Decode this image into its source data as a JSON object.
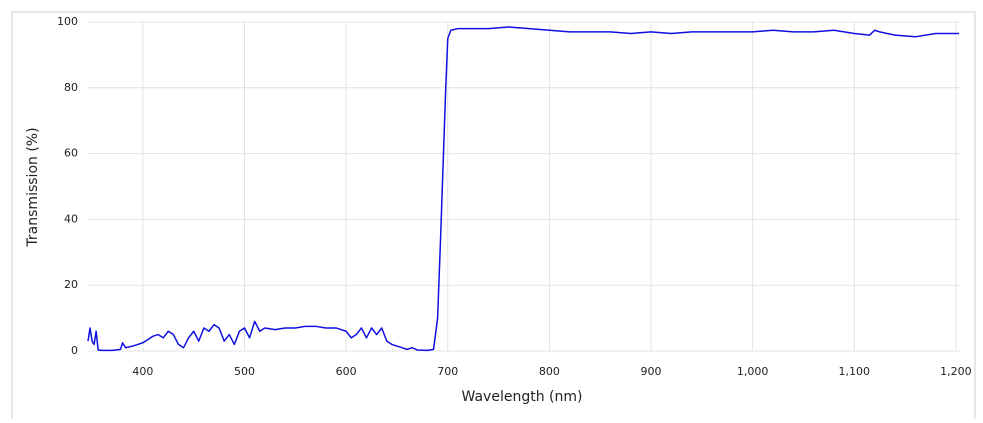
{
  "chart_data": {
    "type": "line",
    "x_label": "Wavelength (nm)",
    "y_label": "Transmission (%)",
    "xlim": [
      346,
      1204
    ],
    "ylim": [
      0,
      100
    ],
    "xticks": [
      400,
      500,
      600,
      700,
      800,
      900,
      {
        "value": 1000,
        "label": "1,000"
      },
      {
        "value": 1100,
        "label": "1,100"
      },
      {
        "value": 1200,
        "label": "1,200"
      }
    ],
    "yticks": [
      0,
      20,
      40,
      60,
      80,
      100
    ],
    "grid": true,
    "x": [
      346,
      348,
      350,
      352,
      354,
      356,
      360,
      370,
      378,
      380,
      383,
      390,
      395,
      400,
      405,
      410,
      415,
      420,
      425,
      430,
      435,
      440,
      445,
      450,
      455,
      460,
      465,
      470,
      475,
      480,
      485,
      490,
      495,
      500,
      505,
      510,
      515,
      520,
      530,
      540,
      550,
      560,
      570,
      580,
      590,
      600,
      605,
      610,
      615,
      620,
      625,
      630,
      635,
      640,
      645,
      650,
      655,
      660,
      665,
      670,
      680,
      686,
      690,
      693,
      696,
      698,
      700,
      703,
      710,
      720,
      740,
      760,
      780,
      800,
      820,
      840,
      860,
      880,
      900,
      920,
      940,
      960,
      980,
      1000,
      1020,
      1040,
      1060,
      1080,
      1100,
      1115,
      1120,
      1125,
      1140,
      1160,
      1180,
      1200,
      1203
    ],
    "series": [
      {
        "name": "Transmission",
        "color": "#1010e0",
        "values": [
          3,
          7,
          3,
          2,
          6,
          0.3,
          0.2,
          0.2,
          0.5,
          2.5,
          1,
          1.5,
          2,
          2.5,
          3.5,
          4.5,
          5,
          4,
          6,
          5,
          2,
          1,
          4,
          6,
          3,
          7,
          6,
          8,
          7,
          3,
          5,
          2,
          6,
          7,
          4,
          9,
          6,
          7,
          6.5,
          7,
          7,
          7.5,
          7.5,
          7,
          7,
          6,
          4,
          5,
          7,
          4,
          7,
          5,
          7,
          3,
          2,
          1.5,
          1,
          0.5,
          1,
          0.3,
          0.2,
          0.5,
          10,
          35,
          62,
          80,
          95,
          97.5,
          98,
          98,
          98,
          98.5,
          98,
          97.5,
          97,
          97,
          97,
          96.5,
          97,
          96.5,
          97,
          97,
          97,
          97,
          97.5,
          97,
          97,
          97.5,
          96.5,
          96,
          97.5,
          97,
          96,
          95.5,
          96.5,
          96.5,
          96.5
        ]
      }
    ]
  }
}
